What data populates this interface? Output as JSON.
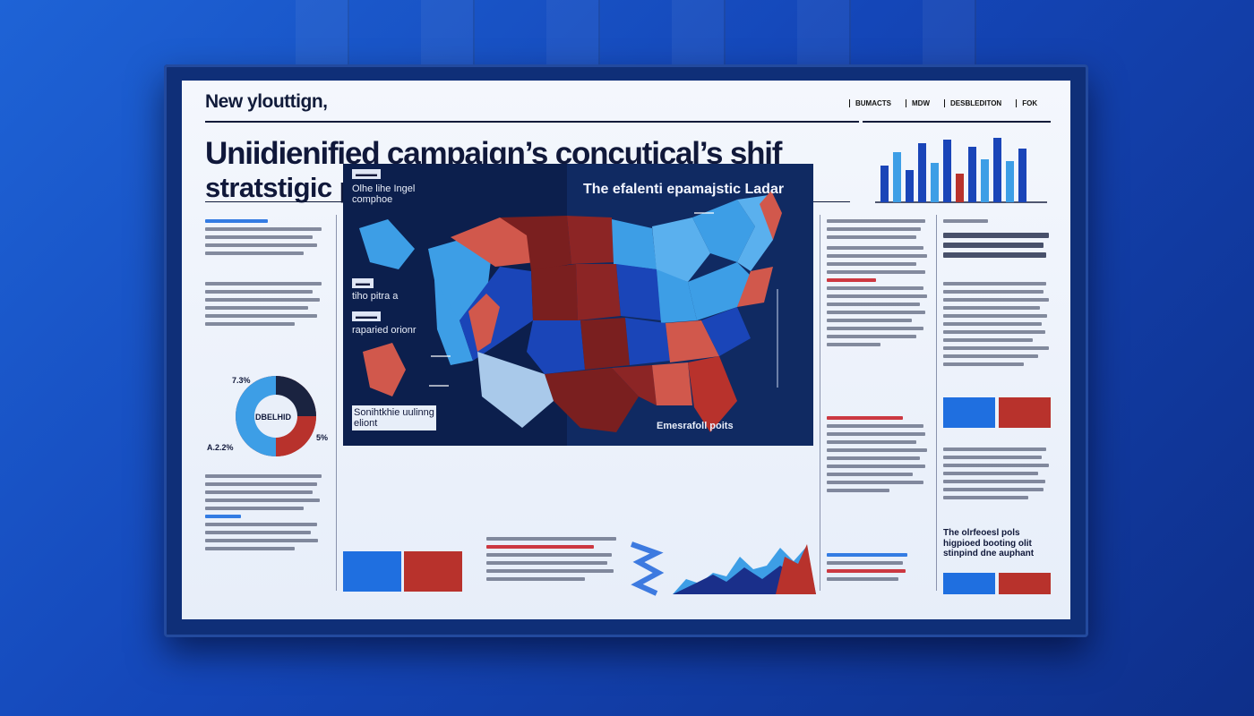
{
  "masthead": "New ylouttign,",
  "nav": [
    "BUMACTS",
    "MDW",
    "DESBLEDITON",
    "FOK"
  ],
  "headline": {
    "line1": "Uniidienified campaign’s concutical’s shif",
    "line2": "stratstigic poiints’s orsrategic  shiift"
  },
  "map": {
    "title": "The efalenti epamajstic Ladar",
    "label_top": "Olhe lihe Ingel comphoe",
    "label_mid": "tiho pitra a",
    "label_low": "raparied orionr",
    "label_bottom": "Sonihtkhie uulinng eliont",
    "label_bottom_right": "Emesrafoll poits"
  },
  "pie": {
    "center_label": "DBELHID",
    "top_label": "7.3%",
    "left_label": "A.2.2%",
    "right_label": "5%"
  },
  "right_callout": {
    "line1": "The olrfeoesl pols",
    "line2": "higpioed booting olit",
    "line3": "stinpind dne auphant"
  },
  "colors": {
    "red": "#b8322c",
    "dark_red": "#7a1f1f",
    "blue": "#1a45b8",
    "light_blue": "#3d9ee6",
    "navy": "#0c1f4d"
  }
}
